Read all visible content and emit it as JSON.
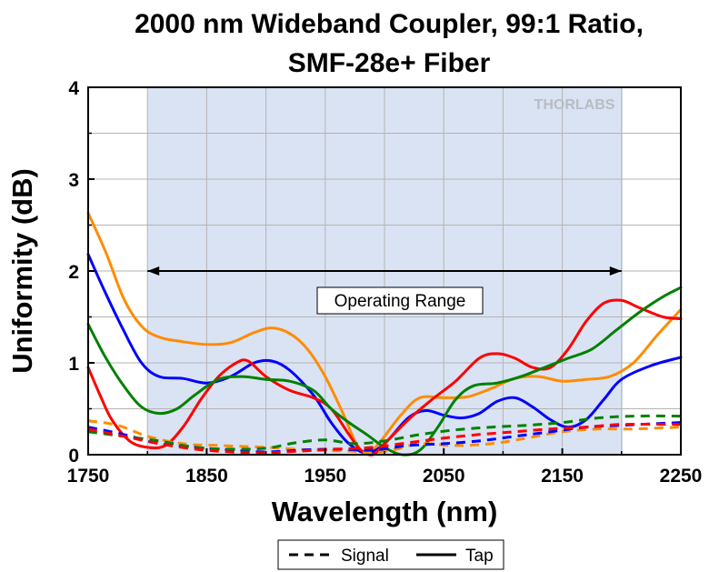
{
  "chart_data": {
    "type": "line",
    "title_lines": [
      "2000 nm Wideband Coupler, 99:1 Ratio,",
      "SMF-28e+ Fiber"
    ],
    "xlabel": "Wavelength (nm)",
    "ylabel": "Uniformity (dB)",
    "xlim": [
      1750,
      2250
    ],
    "ylim": [
      0,
      4
    ],
    "x_ticks": [
      1750,
      1850,
      1950,
      2050,
      2150,
      2250
    ],
    "y_ticks": [
      0,
      1,
      2,
      3,
      4
    ],
    "grid": true,
    "operating_range": {
      "label": "Operating Range",
      "x_start": 1800,
      "x_end": 2200,
      "arrow_y": 2.0
    },
    "watermark": "THORLABS",
    "legend": {
      "placement": "bottom-center",
      "entries": [
        {
          "label": "Signal",
          "style": "dashed"
        },
        {
          "label": "Tap",
          "style": "solid"
        }
      ]
    },
    "series": [
      {
        "color": "#ff8c00",
        "style": "solid",
        "points": [
          [
            1750,
            2.63
          ],
          [
            1765,
            2.2
          ],
          [
            1780,
            1.7
          ],
          [
            1795,
            1.4
          ],
          [
            1810,
            1.28
          ],
          [
            1830,
            1.23
          ],
          [
            1850,
            1.2
          ],
          [
            1870,
            1.22
          ],
          [
            1890,
            1.33
          ],
          [
            1905,
            1.38
          ],
          [
            1920,
            1.32
          ],
          [
            1935,
            1.15
          ],
          [
            1950,
            0.85
          ],
          [
            1965,
            0.45
          ],
          [
            1975,
            0.15
          ],
          [
            1983,
            0.02
          ],
          [
            1990,
            0.05
          ],
          [
            2000,
            0.2
          ],
          [
            2015,
            0.45
          ],
          [
            2030,
            0.62
          ],
          [
            2050,
            0.62
          ],
          [
            2070,
            0.63
          ],
          [
            2090,
            0.72
          ],
          [
            2110,
            0.83
          ],
          [
            2130,
            0.85
          ],
          [
            2150,
            0.8
          ],
          [
            2170,
            0.82
          ],
          [
            2190,
            0.85
          ],
          [
            2210,
            1.0
          ],
          [
            2230,
            1.3
          ],
          [
            2250,
            1.58
          ]
        ]
      },
      {
        "color": "#0000ff",
        "style": "solid",
        "points": [
          [
            1750,
            2.18
          ],
          [
            1765,
            1.75
          ],
          [
            1780,
            1.35
          ],
          [
            1795,
            1.0
          ],
          [
            1810,
            0.85
          ],
          [
            1830,
            0.83
          ],
          [
            1850,
            0.78
          ],
          [
            1870,
            0.85
          ],
          [
            1890,
            1.0
          ],
          [
            1905,
            1.02
          ],
          [
            1920,
            0.92
          ],
          [
            1940,
            0.65
          ],
          [
            1955,
            0.35
          ],
          [
            1970,
            0.12
          ],
          [
            1985,
            0.02
          ],
          [
            2000,
            0.12
          ],
          [
            2020,
            0.4
          ],
          [
            2035,
            0.48
          ],
          [
            2050,
            0.43
          ],
          [
            2065,
            0.4
          ],
          [
            2080,
            0.45
          ],
          [
            2095,
            0.58
          ],
          [
            2110,
            0.62
          ],
          [
            2125,
            0.52
          ],
          [
            2140,
            0.38
          ],
          [
            2155,
            0.3
          ],
          [
            2170,
            0.38
          ],
          [
            2185,
            0.6
          ],
          [
            2200,
            0.82
          ],
          [
            2225,
            0.97
          ],
          [
            2250,
            1.06
          ]
        ]
      },
      {
        "color": "#ff0000",
        "style": "solid",
        "points": [
          [
            1750,
            0.95
          ],
          [
            1760,
            0.65
          ],
          [
            1770,
            0.38
          ],
          [
            1785,
            0.15
          ],
          [
            1800,
            0.08
          ],
          [
            1815,
            0.1
          ],
          [
            1830,
            0.3
          ],
          [
            1845,
            0.6
          ],
          [
            1860,
            0.85
          ],
          [
            1875,
            1.0
          ],
          [
            1885,
            1.02
          ],
          [
            1900,
            0.85
          ],
          [
            1920,
            0.7
          ],
          [
            1940,
            0.62
          ],
          [
            1955,
            0.5
          ],
          [
            1970,
            0.22
          ],
          [
            1980,
            0.05
          ],
          [
            1990,
            0.0
          ],
          [
            2000,
            0.12
          ],
          [
            2020,
            0.38
          ],
          [
            2040,
            0.6
          ],
          [
            2060,
            0.8
          ],
          [
            2080,
            1.05
          ],
          [
            2095,
            1.1
          ],
          [
            2110,
            1.05
          ],
          [
            2125,
            0.95
          ],
          [
            2140,
            0.95
          ],
          [
            2155,
            1.15
          ],
          [
            2170,
            1.45
          ],
          [
            2185,
            1.65
          ],
          [
            2200,
            1.68
          ],
          [
            2215,
            1.6
          ],
          [
            2235,
            1.5
          ],
          [
            2250,
            1.48
          ]
        ]
      },
      {
        "color": "#008000",
        "style": "solid",
        "points": [
          [
            1750,
            1.42
          ],
          [
            1765,
            1.05
          ],
          [
            1780,
            0.75
          ],
          [
            1795,
            0.52
          ],
          [
            1810,
            0.45
          ],
          [
            1825,
            0.5
          ],
          [
            1840,
            0.65
          ],
          [
            1860,
            0.82
          ],
          [
            1880,
            0.85
          ],
          [
            1900,
            0.82
          ],
          [
            1920,
            0.8
          ],
          [
            1940,
            0.7
          ],
          [
            1955,
            0.5
          ],
          [
            1970,
            0.35
          ],
          [
            1985,
            0.22
          ],
          [
            2000,
            0.08
          ],
          [
            2015,
            0.0
          ],
          [
            2030,
            0.05
          ],
          [
            2045,
            0.3
          ],
          [
            2060,
            0.6
          ],
          [
            2075,
            0.75
          ],
          [
            2095,
            0.78
          ],
          [
            2115,
            0.85
          ],
          [
            2135,
            0.95
          ],
          [
            2155,
            1.05
          ],
          [
            2175,
            1.15
          ],
          [
            2195,
            1.35
          ],
          [
            2215,
            1.55
          ],
          [
            2235,
            1.72
          ],
          [
            2250,
            1.82
          ]
        ]
      },
      {
        "color": "#ff8c00",
        "style": "dashed",
        "points": [
          [
            1750,
            0.37
          ],
          [
            1775,
            0.32
          ],
          [
            1800,
            0.2
          ],
          [
            1830,
            0.12
          ],
          [
            1860,
            0.1
          ],
          [
            1900,
            0.08
          ],
          [
            1940,
            0.05
          ],
          [
            1970,
            0.04
          ],
          [
            1990,
            0.02
          ],
          [
            2010,
            0.06
          ],
          [
            2030,
            0.12
          ],
          [
            2060,
            0.1
          ],
          [
            2090,
            0.12
          ],
          [
            2120,
            0.18
          ],
          [
            2150,
            0.25
          ],
          [
            2180,
            0.28
          ],
          [
            2210,
            0.28
          ],
          [
            2250,
            0.3
          ]
        ]
      },
      {
        "color": "#0000ff",
        "style": "dashed",
        "points": [
          [
            1750,
            0.3
          ],
          [
            1780,
            0.22
          ],
          [
            1810,
            0.12
          ],
          [
            1840,
            0.08
          ],
          [
            1870,
            0.05
          ],
          [
            1900,
            0.03
          ],
          [
            1930,
            0.05
          ],
          [
            1960,
            0.06
          ],
          [
            1990,
            0.05
          ],
          [
            2020,
            0.1
          ],
          [
            2050,
            0.12
          ],
          [
            2080,
            0.15
          ],
          [
            2110,
            0.2
          ],
          [
            2140,
            0.25
          ],
          [
            2170,
            0.3
          ],
          [
            2200,
            0.32
          ],
          [
            2250,
            0.35
          ]
        ]
      },
      {
        "color": "#008000",
        "style": "dashed",
        "points": [
          [
            1750,
            0.25
          ],
          [
            1780,
            0.2
          ],
          [
            1810,
            0.15
          ],
          [
            1840,
            0.08
          ],
          [
            1870,
            0.06
          ],
          [
            1900,
            0.07
          ],
          [
            1925,
            0.13
          ],
          [
            1950,
            0.16
          ],
          [
            1975,
            0.12
          ],
          [
            2000,
            0.15
          ],
          [
            2030,
            0.22
          ],
          [
            2060,
            0.27
          ],
          [
            2090,
            0.3
          ],
          [
            2120,
            0.32
          ],
          [
            2150,
            0.35
          ],
          [
            2180,
            0.4
          ],
          [
            2210,
            0.42
          ],
          [
            2250,
            0.42
          ]
        ]
      },
      {
        "color": "#ff0000",
        "style": "dashed",
        "points": [
          [
            1750,
            0.28
          ],
          [
            1780,
            0.2
          ],
          [
            1810,
            0.12
          ],
          [
            1840,
            0.06
          ],
          [
            1870,
            0.03
          ],
          [
            1900,
            0.02
          ],
          [
            1930,
            0.04
          ],
          [
            1960,
            0.06
          ],
          [
            1990,
            0.08
          ],
          [
            2020,
            0.13
          ],
          [
            2050,
            0.18
          ],
          [
            2080,
            0.22
          ],
          [
            2110,
            0.25
          ],
          [
            2140,
            0.28
          ],
          [
            2170,
            0.3
          ],
          [
            2200,
            0.33
          ],
          [
            2250,
            0.33
          ]
        ]
      }
    ]
  }
}
